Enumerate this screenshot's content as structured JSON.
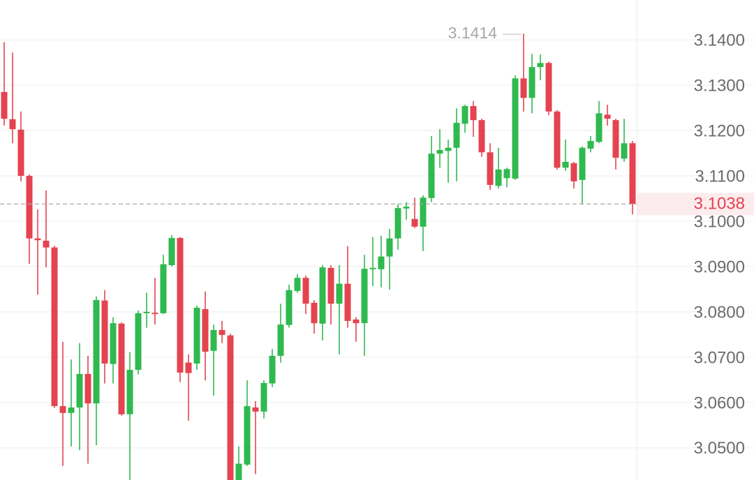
{
  "chart_data": {
    "type": "candlestick",
    "ylim": [
      3.0429,
      3.1488
    ],
    "yticks": [
      {
        "value": 3.14,
        "label": "3.1400"
      },
      {
        "value": 3.13,
        "label": "3.1300"
      },
      {
        "value": 3.12,
        "label": "3.1200"
      },
      {
        "value": 3.11,
        "label": "3.1100"
      },
      {
        "value": 3.1,
        "label": "3.1000"
      },
      {
        "value": 3.09,
        "label": "3.0900"
      },
      {
        "value": 3.08,
        "label": "3.0800"
      },
      {
        "value": 3.07,
        "label": "3.0700"
      },
      {
        "value": 3.06,
        "label": "3.0600"
      },
      {
        "value": 3.05,
        "label": "3.0500"
      }
    ],
    "grid": true,
    "up_color": "#2fb94f",
    "down_color": "#e4434f",
    "open": [
      3.1285,
      3.1225,
      3.1202,
      3.11,
      3.0962,
      3.0957,
      3.0942,
      3.0592,
      3.0577,
      3.0589,
      3.0663,
      3.0598,
      3.0825,
      3.0685,
      3.0774,
      3.0574,
      3.0672,
      3.0797,
      3.0798,
      3.0797,
      3.0903,
      3.0963,
      3.0688,
      3.0686,
      3.0806,
      3.0714,
      3.076,
      3.0748,
      3.0425,
      3.0463,
      3.0589,
      3.058,
      3.0642,
      3.0703,
      3.0771,
      3.0846,
      3.0875,
      3.082,
      3.0774,
      3.0897,
      3.0818,
      3.0862,
      3.0783,
      3.0775,
      3.0894,
      3.0894,
      3.0922,
      3.0962,
      3.1028,
      3.1005,
      3.0988,
      3.1051,
      3.1149,
      3.1155,
      3.1162,
      3.1215,
      3.1254,
      3.1223,
      3.1152,
      3.1078,
      3.1095,
      3.1094,
      3.1315,
      3.1272,
      3.134,
      3.1349,
      3.1242,
      3.1118,
      3.1128,
      3.1091,
      3.116,
      3.1175,
      3.1235,
      3.1223,
      3.1138,
      3.1172
    ],
    "high": [
      3.1395,
      3.1372,
      3.1242,
      3.1103,
      3.1026,
      3.1068,
      3.0946,
      3.0734,
      3.0695,
      3.0731,
      3.0703,
      3.0834,
      3.0848,
      3.0788,
      3.0777,
      3.0711,
      3.0803,
      3.0842,
      3.0875,
      3.0926,
      3.0969,
      3.0965,
      3.0706,
      3.0814,
      3.0845,
      3.0772,
      3.078,
      3.0752,
      3.0503,
      3.0649,
      3.0603,
      3.0649,
      3.0718,
      3.0818,
      3.086,
      3.0883,
      3.088,
      3.0826,
      3.0903,
      3.0903,
      3.0903,
      3.0945,
      3.0788,
      3.0926,
      3.0965,
      3.0968,
      3.0983,
      3.1037,
      3.1042,
      3.1052,
      3.1057,
      3.1188,
      3.1203,
      3.118,
      3.1249,
      3.1257,
      3.1265,
      3.1226,
      3.1172,
      3.1162,
      3.1118,
      3.1322,
      3.1414,
      3.1369,
      3.1368,
      3.1352,
      3.1245,
      3.118,
      3.1131,
      3.1165,
      3.1188,
      3.1265,
      3.1257,
      3.1226,
      3.1226,
      3.1177
    ],
    "low": [
      3.1211,
      3.1172,
      3.1088,
      3.0906,
      3.0838,
      3.0898,
      3.0588,
      3.046,
      3.0503,
      3.0495,
      3.0465,
      3.0506,
      3.0642,
      3.0642,
      3.0571,
      3.0429,
      3.0662,
      3.0765,
      3.0772,
      3.0795,
      3.09,
      3.0645,
      3.056,
      3.0672,
      3.0649,
      3.0615,
      3.0731,
      3.042,
      3.042,
      3.046,
      3.0442,
      3.0565,
      3.0634,
      3.0688,
      3.0765,
      3.0842,
      3.0795,
      3.0752,
      3.0737,
      3.0772,
      3.0706,
      3.0765,
      3.0734,
      3.0703,
      3.0857,
      3.0854,
      3.0849,
      3.0937,
      3.1003,
      3.0985,
      3.0934,
      3.1042,
      3.1118,
      3.1085,
      3.1088,
      3.1195,
      3.1186,
      3.1142,
      3.1069,
      3.1072,
      3.1075,
      3.1091,
      3.1242,
      3.1238,
      3.1311,
      3.1234,
      3.1114,
      3.1111,
      3.1072,
      3.1038,
      3.1152,
      3.1172,
      3.1211,
      3.1114,
      3.1131,
      3.1015
    ],
    "close": [
      3.1226,
      3.1203,
      3.11,
      3.0962,
      3.0958,
      3.0942,
      3.0592,
      3.0577,
      3.0589,
      3.0663,
      3.0598,
      3.0826,
      3.0686,
      3.0775,
      3.0574,
      3.0672,
      3.0797,
      3.08,
      3.0795,
      3.0905,
      3.0963,
      3.0666,
      3.0665,
      3.0809,
      3.0712,
      3.076,
      3.0749,
      3.0425,
      3.0465,
      3.0592,
      3.058,
      3.0643,
      3.0703,
      3.0772,
      3.0848,
      3.0875,
      3.0818,
      3.0775,
      3.0898,
      3.0818,
      3.0862,
      3.078,
      3.0775,
      3.0895,
      3.0897,
      3.0922,
      3.0962,
      3.1029,
      3.1032,
      3.0988,
      3.1052,
      3.1149,
      3.1157,
      3.1162,
      3.1217,
      3.1254,
      3.1223,
      3.1152,
      3.108,
      3.1114,
      3.1115,
      3.1315,
      3.1272,
      3.134,
      3.1349,
      3.1242,
      3.1118,
      3.1131,
      3.1088,
      3.1162,
      3.1177,
      3.1238,
      3.1226,
      3.114,
      3.1172,
      3.1038
    ]
  }
}
